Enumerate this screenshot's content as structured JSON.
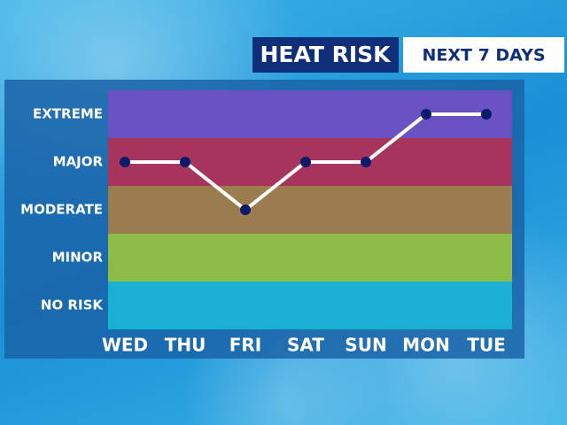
{
  "chart_data": {
    "type": "line",
    "title": "HEAT RISK",
    "subtitle": "NEXT 7 DAYS",
    "categories": [
      "WED",
      "THU",
      "FRI",
      "SAT",
      "SUN",
      "MON",
      "TUE"
    ],
    "values": [
      3,
      3,
      2,
      3,
      3,
      4,
      4
    ],
    "color": "#ffffff",
    "marker_color": "#0b1a6b",
    "ylim": [
      -0.5,
      4.5
    ],
    "yticks": [
      {
        "value": 0,
        "label": "NO RISK"
      },
      {
        "value": 1,
        "label": "MINOR"
      },
      {
        "value": 2,
        "label": "MODERATE"
      },
      {
        "value": 3,
        "label": "MAJOR"
      },
      {
        "value": 4,
        "label": "EXTREME"
      }
    ],
    "band_colors": [
      "#1ab0d2",
      "#8cbb48",
      "#9a7c4e",
      "#a6345c",
      "#6a52c2"
    ]
  }
}
